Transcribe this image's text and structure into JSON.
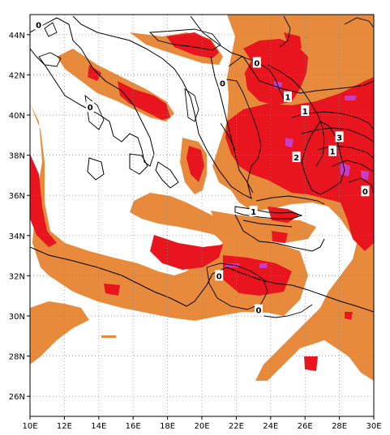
{
  "map": {
    "lon_range": [
      10,
      30
    ],
    "lat_range": [
      25,
      45
    ],
    "x_ticks": [
      "10E",
      "12E",
      "14E",
      "16E",
      "18E",
      "20E",
      "22E",
      "24E",
      "26E",
      "28E",
      "30E"
    ],
    "y_ticks": [
      "26N",
      "28N",
      "30N",
      "32N",
      "34N",
      "36N",
      "38N",
      "40N",
      "42N",
      "44N"
    ],
    "gridlines": "dotted",
    "colors": {
      "fill_low": "#e88a3c",
      "fill_mid": "#e8141e",
      "fill_high": "#c83cc8",
      "coastline": "#000000",
      "contour": "#000000"
    },
    "contour_labels": [
      {
        "text": "0",
        "lon": 10.5,
        "lat": 44.5
      },
      {
        "text": "0",
        "lon": 13.5,
        "lat": 40.4
      },
      {
        "text": "0",
        "lon": 21.2,
        "lat": 41.6
      },
      {
        "text": "0",
        "lon": 23.2,
        "lat": 42.6
      },
      {
        "text": "1",
        "lon": 25.0,
        "lat": 40.9
      },
      {
        "text": "1",
        "lon": 26.0,
        "lat": 40.2
      },
      {
        "text": "3",
        "lon": 28.0,
        "lat": 38.9
      },
      {
        "text": "1",
        "lon": 27.6,
        "lat": 38.2
      },
      {
        "text": "2",
        "lon": 25.5,
        "lat": 37.9
      },
      {
        "text": "0",
        "lon": 29.5,
        "lat": 36.2
      },
      {
        "text": "1",
        "lon": 23.0,
        "lat": 35.2
      },
      {
        "text": "0",
        "lon": 21.0,
        "lat": 32.0
      },
      {
        "text": "0",
        "lon": 23.3,
        "lat": 30.3
      }
    ]
  }
}
